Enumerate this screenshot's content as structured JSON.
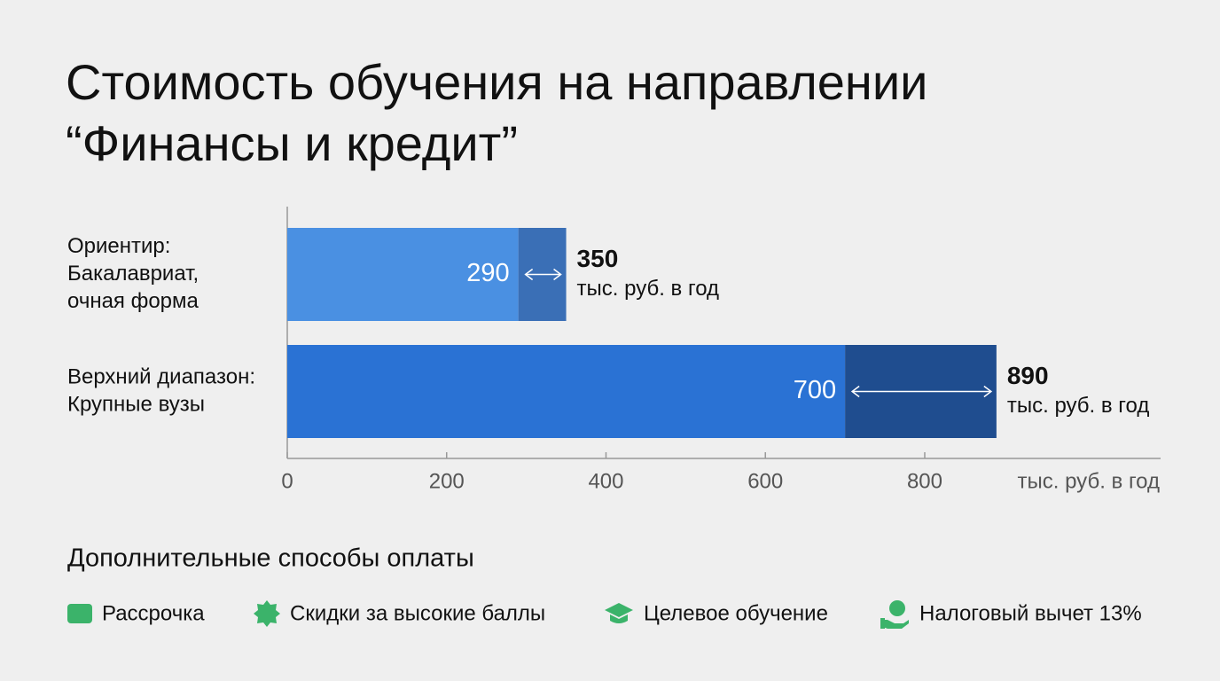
{
  "chart_data": {
    "type": "range-bar",
    "title_lines": [
      "Стоимость обучения на направлении",
      "“Финансы и кредит”"
    ],
    "categories": [
      "Ориентир:",
      "Верхний диапазон:"
    ],
    "category_details": [
      [
        "Бакалавриат,",
        "очная форма"
      ],
      [
        "Крупные вузы"
      ]
    ],
    "low": [
      290,
      700
    ],
    "high": [
      350,
      890
    ],
    "colors": [
      [
        "#4a90e2",
        "#3a6fb6"
      ],
      [
        "#2a72d4",
        "#1f4d8f"
      ]
    ],
    "unit": "тыс. руб. в год",
    "xlim": [
      0,
      1096
    ],
    "xticks": [
      0,
      200,
      400,
      600,
      800
    ]
  },
  "payment_options": {
    "title": "Дополнительные способы оплаты",
    "items": [
      "Рассрочка",
      "Скидки за высокие баллы",
      "Целевое обучение",
      "Налоговый вычет 13%"
    ]
  }
}
